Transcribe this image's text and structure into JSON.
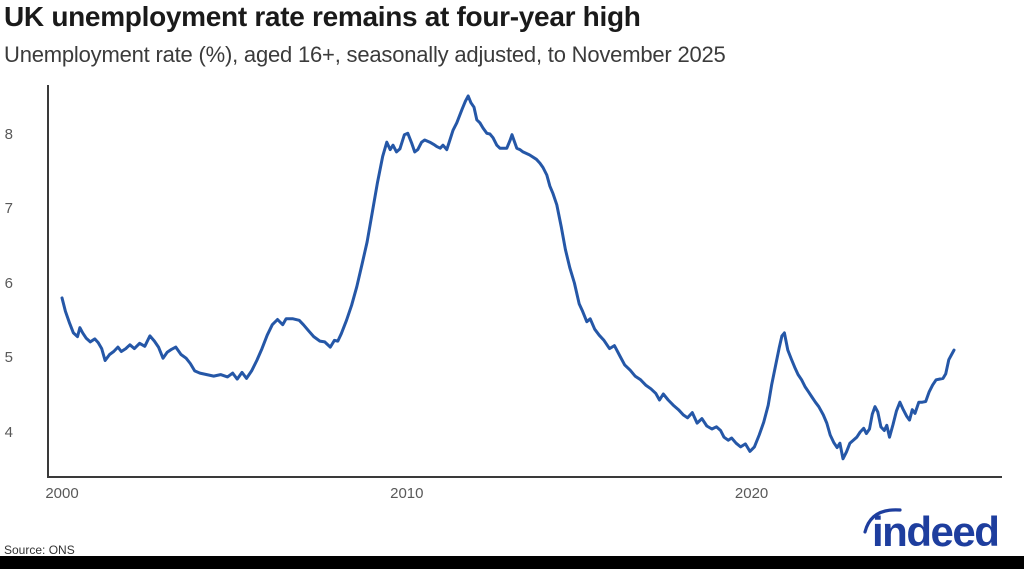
{
  "header": {
    "title": "UK unemployment rate remains at four-year high",
    "subtitle": "Unemployment rate (%), aged 16+, seasonally adjusted, to November 2025"
  },
  "footer": {
    "source": "Source: ONS",
    "logo_text": "indeed"
  },
  "colors": {
    "line": "#2557a7",
    "axis": "#3a3a3a",
    "tick_label": "#595959",
    "logo": "#1e3e9e",
    "bottom_bar": "#000000"
  },
  "chart_data": {
    "type": "line",
    "title": "UK unemployment rate remains at four-year high",
    "subtitle": "Unemployment rate (%), aged 16+, seasonally adjusted, to November 2025",
    "xlabel": "",
    "ylabel": "Unemployment rate (%)",
    "x_range": [
      2000.0,
      2025.87
    ],
    "ylim": [
      3.4,
      8.66
    ],
    "x_ticks": [
      2000,
      2010,
      2020
    ],
    "y_ticks": [
      4,
      5,
      6,
      7,
      8
    ],
    "grid": false,
    "legend": false,
    "series": [
      {
        "name": "UK unemployment rate (%), aged 16+, seasonally adjusted",
        "points": [
          [
            2000.0,
            5.8
          ],
          [
            2000.1,
            5.62
          ],
          [
            2000.22,
            5.46
          ],
          [
            2000.33,
            5.33
          ],
          [
            2000.45,
            5.28
          ],
          [
            2000.52,
            5.4
          ],
          [
            2000.6,
            5.33
          ],
          [
            2000.7,
            5.26
          ],
          [
            2000.82,
            5.21
          ],
          [
            2000.95,
            5.25
          ],
          [
            2001.05,
            5.2
          ],
          [
            2001.15,
            5.12
          ],
          [
            2001.25,
            4.96
          ],
          [
            2001.38,
            5.04
          ],
          [
            2001.5,
            5.08
          ],
          [
            2001.62,
            5.14
          ],
          [
            2001.72,
            5.08
          ],
          [
            2001.85,
            5.12
          ],
          [
            2001.97,
            5.17
          ],
          [
            2002.1,
            5.12
          ],
          [
            2002.25,
            5.19
          ],
          [
            2002.4,
            5.15
          ],
          [
            2002.55,
            5.29
          ],
          [
            2002.68,
            5.22
          ],
          [
            2002.8,
            5.14
          ],
          [
            2002.93,
            4.99
          ],
          [
            2003.05,
            5.07
          ],
          [
            2003.18,
            5.11
          ],
          [
            2003.3,
            5.14
          ],
          [
            2003.45,
            5.04
          ],
          [
            2003.6,
            4.99
          ],
          [
            2003.72,
            4.92
          ],
          [
            2003.85,
            4.82
          ],
          [
            2004.0,
            4.79
          ],
          [
            2004.2,
            4.77
          ],
          [
            2004.4,
            4.75
          ],
          [
            2004.6,
            4.77
          ],
          [
            2004.8,
            4.74
          ],
          [
            2004.95,
            4.79
          ],
          [
            2005.08,
            4.71
          ],
          [
            2005.22,
            4.8
          ],
          [
            2005.35,
            4.72
          ],
          [
            2005.5,
            4.82
          ],
          [
            2005.65,
            4.96
          ],
          [
            2005.8,
            5.12
          ],
          [
            2005.95,
            5.3
          ],
          [
            2006.1,
            5.44
          ],
          [
            2006.25,
            5.51
          ],
          [
            2006.4,
            5.44
          ],
          [
            2006.5,
            5.52
          ],
          [
            2006.7,
            5.52
          ],
          [
            2006.88,
            5.5
          ],
          [
            2007.0,
            5.44
          ],
          [
            2007.15,
            5.36
          ],
          [
            2007.3,
            5.28
          ],
          [
            2007.48,
            5.22
          ],
          [
            2007.62,
            5.21
          ],
          [
            2007.78,
            5.14
          ],
          [
            2007.9,
            5.23
          ],
          [
            2008.0,
            5.22
          ],
          [
            2008.1,
            5.32
          ],
          [
            2008.25,
            5.5
          ],
          [
            2008.4,
            5.7
          ],
          [
            2008.55,
            5.95
          ],
          [
            2008.7,
            6.25
          ],
          [
            2008.85,
            6.55
          ],
          [
            2009.0,
            6.95
          ],
          [
            2009.15,
            7.35
          ],
          [
            2009.3,
            7.7
          ],
          [
            2009.42,
            7.89
          ],
          [
            2009.52,
            7.79
          ],
          [
            2009.6,
            7.85
          ],
          [
            2009.7,
            7.76
          ],
          [
            2009.8,
            7.8
          ],
          [
            2009.93,
            7.99
          ],
          [
            2010.03,
            8.01
          ],
          [
            2010.14,
            7.88
          ],
          [
            2010.23,
            7.76
          ],
          [
            2010.32,
            7.79
          ],
          [
            2010.43,
            7.89
          ],
          [
            2010.52,
            7.92
          ],
          [
            2010.67,
            7.89
          ],
          [
            2010.78,
            7.86
          ],
          [
            2010.88,
            7.83
          ],
          [
            2010.97,
            7.81
          ],
          [
            2011.05,
            7.85
          ],
          [
            2011.16,
            7.79
          ],
          [
            2011.25,
            7.92
          ],
          [
            2011.34,
            8.05
          ],
          [
            2011.45,
            8.15
          ],
          [
            2011.6,
            8.33
          ],
          [
            2011.7,
            8.44
          ],
          [
            2011.78,
            8.51
          ],
          [
            2011.86,
            8.42
          ],
          [
            2011.95,
            8.36
          ],
          [
            2012.03,
            8.19
          ],
          [
            2012.12,
            8.15
          ],
          [
            2012.21,
            8.08
          ],
          [
            2012.32,
            8.01
          ],
          [
            2012.41,
            8.0
          ],
          [
            2012.5,
            7.95
          ],
          [
            2012.61,
            7.85
          ],
          [
            2012.7,
            7.81
          ],
          [
            2012.9,
            7.81
          ],
          [
            2013.0,
            7.92
          ],
          [
            2013.05,
            7.99
          ],
          [
            2013.19,
            7.81
          ],
          [
            2013.28,
            7.79
          ],
          [
            2013.37,
            7.76
          ],
          [
            2013.56,
            7.72
          ],
          [
            2013.76,
            7.66
          ],
          [
            2013.86,
            7.61
          ],
          [
            2013.95,
            7.55
          ],
          [
            2014.06,
            7.45
          ],
          [
            2014.15,
            7.3
          ],
          [
            2014.24,
            7.2
          ],
          [
            2014.35,
            7.05
          ],
          [
            2014.48,
            6.75
          ],
          [
            2014.6,
            6.45
          ],
          [
            2014.73,
            6.2
          ],
          [
            2014.86,
            6.0
          ],
          [
            2015.0,
            5.72
          ],
          [
            2015.1,
            5.62
          ],
          [
            2015.22,
            5.48
          ],
          [
            2015.32,
            5.52
          ],
          [
            2015.45,
            5.38
          ],
          [
            2015.58,
            5.3
          ],
          [
            2015.72,
            5.23
          ],
          [
            2015.88,
            5.12
          ],
          [
            2016.02,
            5.16
          ],
          [
            2016.18,
            5.02
          ],
          [
            2016.32,
            4.9
          ],
          [
            2016.48,
            4.83
          ],
          [
            2016.62,
            4.75
          ],
          [
            2016.78,
            4.7
          ],
          [
            2016.93,
            4.63
          ],
          [
            2017.08,
            4.58
          ],
          [
            2017.22,
            4.52
          ],
          [
            2017.33,
            4.43
          ],
          [
            2017.44,
            4.51
          ],
          [
            2017.58,
            4.43
          ],
          [
            2017.73,
            4.36
          ],
          [
            2017.88,
            4.3
          ],
          [
            2018.02,
            4.23
          ],
          [
            2018.14,
            4.19
          ],
          [
            2018.28,
            4.26
          ],
          [
            2018.42,
            4.12
          ],
          [
            2018.56,
            4.18
          ],
          [
            2018.7,
            4.08
          ],
          [
            2018.85,
            4.04
          ],
          [
            2018.98,
            4.07
          ],
          [
            2019.1,
            4.02
          ],
          [
            2019.2,
            3.93
          ],
          [
            2019.32,
            3.89
          ],
          [
            2019.42,
            3.92
          ],
          [
            2019.55,
            3.85
          ],
          [
            2019.68,
            3.8
          ],
          [
            2019.82,
            3.84
          ],
          [
            2019.95,
            3.74
          ],
          [
            2020.08,
            3.8
          ],
          [
            2020.22,
            3.96
          ],
          [
            2020.35,
            4.13
          ],
          [
            2020.48,
            4.36
          ],
          [
            2020.58,
            4.63
          ],
          [
            2020.7,
            4.9
          ],
          [
            2020.8,
            5.13
          ],
          [
            2020.88,
            5.29
          ],
          [
            2020.95,
            5.33
          ],
          [
            2021.05,
            5.1
          ],
          [
            2021.15,
            4.98
          ],
          [
            2021.25,
            4.87
          ],
          [
            2021.35,
            4.77
          ],
          [
            2021.45,
            4.7
          ],
          [
            2021.55,
            4.61
          ],
          [
            2021.65,
            4.54
          ],
          [
            2021.75,
            4.47
          ],
          [
            2021.85,
            4.4
          ],
          [
            2021.95,
            4.34
          ],
          [
            2022.08,
            4.23
          ],
          [
            2022.18,
            4.12
          ],
          [
            2022.28,
            3.96
          ],
          [
            2022.38,
            3.86
          ],
          [
            2022.48,
            3.79
          ],
          [
            2022.56,
            3.85
          ],
          [
            2022.65,
            3.64
          ],
          [
            2022.75,
            3.73
          ],
          [
            2022.85,
            3.85
          ],
          [
            2022.95,
            3.89
          ],
          [
            2023.05,
            3.93
          ],
          [
            2023.15,
            4.0
          ],
          [
            2023.25,
            4.05
          ],
          [
            2023.33,
            3.98
          ],
          [
            2023.42,
            4.04
          ],
          [
            2023.5,
            4.24
          ],
          [
            2023.58,
            4.34
          ],
          [
            2023.66,
            4.27
          ],
          [
            2023.75,
            4.07
          ],
          [
            2023.85,
            4.02
          ],
          [
            2023.92,
            4.09
          ],
          [
            2024.0,
            3.93
          ],
          [
            2024.1,
            4.1
          ],
          [
            2024.2,
            4.28
          ],
          [
            2024.3,
            4.4
          ],
          [
            2024.4,
            4.3
          ],
          [
            2024.5,
            4.21
          ],
          [
            2024.58,
            4.16
          ],
          [
            2024.66,
            4.3
          ],
          [
            2024.74,
            4.25
          ],
          [
            2024.85,
            4.4
          ],
          [
            2024.95,
            4.4
          ],
          [
            2025.05,
            4.41
          ],
          [
            2025.15,
            4.54
          ],
          [
            2025.25,
            4.63
          ],
          [
            2025.35,
            4.7
          ],
          [
            2025.45,
            4.71
          ],
          [
            2025.55,
            4.72
          ],
          [
            2025.63,
            4.78
          ],
          [
            2025.72,
            4.97
          ],
          [
            2025.8,
            5.04
          ],
          [
            2025.87,
            5.1
          ]
        ]
      }
    ]
  }
}
